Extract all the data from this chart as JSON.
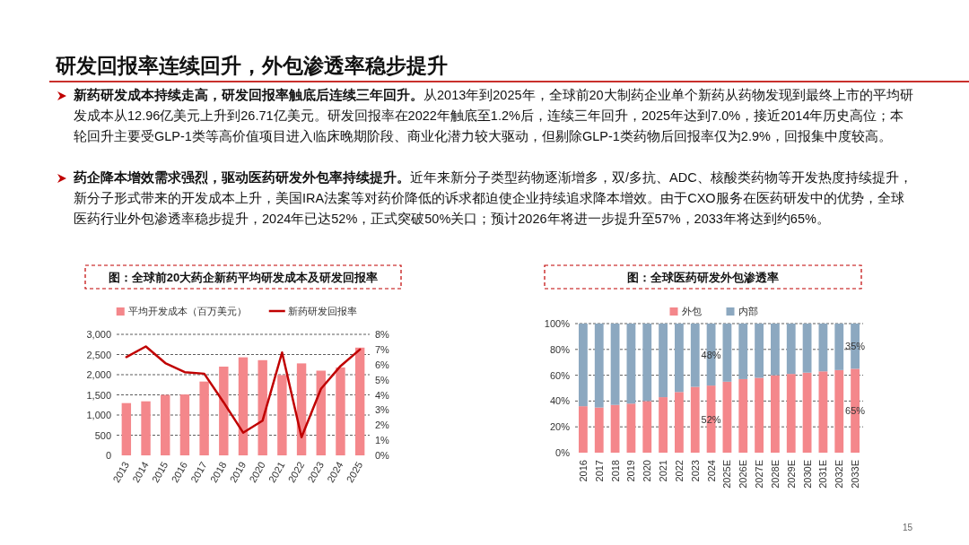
{
  "chart_data": [
    {
      "type": "other",
      "title": "研发回报率连续回升，外包渗透率稳步提升",
      "annotations": [
        "新药研发成本持续走高，研发回报率触底后连续三年回升。",
        "从2013年到2025年，全球前20大制药企业单个新药从药物发现到最终上市的平均研发成本从12.96亿美元上升到26.71亿美元。研发回报率在2022年触底至1.2%后，连续三年回升，2025年达到7.0%，接近2014年历史高位；本轮回升主要受GLP-1类等高价值项目进入临床晚期阶段、商业化潜力较大驱动，但剔除GLP-1类药物后回报率仅为2.9%，回报集中度较高。",
        "药企降本增效需求强烈，驱动医药研发外包率持续提升。",
        "近年来新分子类型药物逐渐增多，双/多抗、ADC、核酸类药物等开发热度持续提升，新分子形式带来的开发成本上升，美国IRA法案等对药价降低的诉求都迫使企业持续追求降本增效。由于CXO服务在医药研发中的优势，全球医药行业外包渗透率稳步提升，2024年已达52%，正式突破50%关口；预计2026年将进一步提升至57%，2033年将达到约65%。",
        "15"
      ]
    },
    {
      "type": "bar",
      "title": "图：全球前20大药企新药平均研发成本及研发回报率",
      "categories": [
        "2013",
        "2014",
        "2015",
        "2016",
        "2017",
        "2018",
        "2019",
        "2020",
        "2021",
        "2022",
        "2023",
        "2024",
        "2025"
      ],
      "series": [
        {
          "name": "平均开发成本（百万美元）",
          "color": "#f4878b",
          "values": [
            1296,
            1340,
            1500,
            1510,
            1830,
            2200,
            2430,
            2360,
            1990,
            2280,
            2100,
            2180,
            2671
          ]
        },
        {
          "name": "新药研发回报率",
          "type": "line",
          "axis": "y2",
          "color": "#c00000",
          "values": [
            6.5,
            7.2,
            6.1,
            5.5,
            5.4,
            3.5,
            1.5,
            2.3,
            6.8,
            1.2,
            4.4,
            5.9,
            7.0
          ]
        }
      ],
      "ylim": [
        0,
        3000
      ],
      "yticks": [
        0,
        500,
        {
          "value": 1000,
          "label": "1,000"
        },
        {
          "value": 1500,
          "label": "1,500"
        },
        {
          "value": 2000,
          "label": "2,000"
        },
        {
          "value": 2500,
          "label": "2,500"
        },
        {
          "value": 3000,
          "label": "3,000"
        }
      ],
      "y2lim": [
        0,
        8
      ],
      "y2ticks": [
        {
          "value": 0,
          "label": "0%"
        },
        {
          "value": 1,
          "label": "1%"
        },
        {
          "value": 2,
          "label": "2%"
        },
        {
          "value": 3,
          "label": "3%"
        },
        {
          "value": 4,
          "label": "4%"
        },
        {
          "value": 5,
          "label": "5%"
        },
        {
          "value": 6,
          "label": "6%"
        },
        {
          "value": 7,
          "label": "7%"
        },
        {
          "value": 8,
          "label": "8%"
        }
      ],
      "grid": "y",
      "legend": "top"
    },
    {
      "type": "bar",
      "title": "图：全球医药研发外包渗透率",
      "stacked": true,
      "categories": [
        "2016",
        "2017",
        "2018",
        "2019",
        "2020",
        "2021",
        "2022",
        "2023",
        "2024",
        "2025E",
        "2026E",
        "2027E",
        "2028E",
        "2029E",
        "2030E",
        "2031E",
        "2032E",
        "2033E"
      ],
      "series": [
        {
          "name": "外包",
          "color": "#f4878b",
          "values": [
            36,
            35,
            37,
            38,
            40,
            43,
            47,
            51,
            52,
            55,
            57,
            58,
            60,
            61,
            62,
            63,
            64,
            65
          ],
          "value_labels": [
            null,
            null,
            null,
            null,
            null,
            null,
            null,
            null,
            "52%",
            null,
            null,
            null,
            null,
            null,
            null,
            null,
            null,
            "65%"
          ]
        },
        {
          "name": "内部",
          "color": "#8ca8c0",
          "values": [
            64,
            65,
            63,
            62,
            60,
            57,
            53,
            49,
            48,
            45,
            43,
            42,
            40,
            39,
            38,
            37,
            36,
            35
          ],
          "value_labels": [
            null,
            null,
            null,
            null,
            null,
            null,
            null,
            null,
            "48%",
            null,
            null,
            null,
            null,
            null,
            null,
            null,
            null,
            "35%"
          ]
        }
      ],
      "ylim": [
        0,
        100
      ],
      "yticks": [
        {
          "value": 0,
          "label": "0%"
        },
        {
          "value": 20,
          "label": "20%"
        },
        {
          "value": 40,
          "label": "40%"
        },
        {
          "value": 60,
          "label": "60%"
        },
        {
          "value": 80,
          "label": "80%"
        },
        {
          "value": 100,
          "label": "100%"
        }
      ],
      "grid": "y",
      "legend": "top"
    }
  ]
}
